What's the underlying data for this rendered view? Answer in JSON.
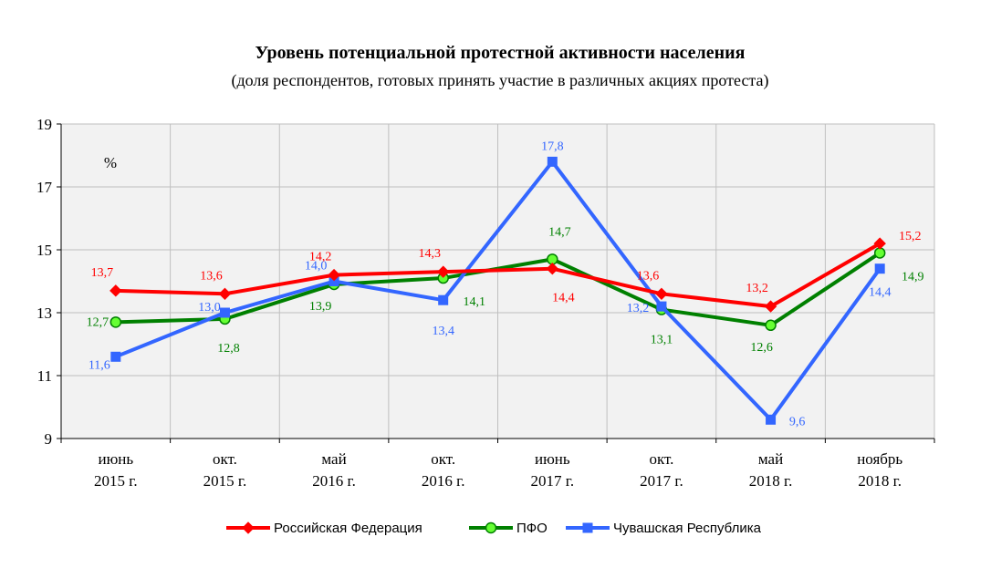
{
  "chart_data": {
    "type": "line",
    "title": "Уровень потенциальной протестной активности населения",
    "subtitle": "(доля респондентов, готовых принять участие в различных акциях протеста)",
    "unit_label": "%",
    "categories": [
      [
        "июнь",
        "2015 г."
      ],
      [
        "окт.",
        "2015 г."
      ],
      [
        "май",
        "2016 г."
      ],
      [
        "окт.",
        "2016 г."
      ],
      [
        "июнь",
        "2017 г."
      ],
      [
        "окт.",
        "2017 г."
      ],
      [
        "май",
        "2018 г."
      ],
      [
        "ноябрь",
        "2018 г."
      ]
    ],
    "ylim": [
      9,
      19
    ],
    "yticks": [
      9,
      11,
      13,
      15,
      17,
      19
    ],
    "grid": true,
    "legend_position": "bottom",
    "series": [
      {
        "name": "Российская Федерация",
        "color": "#ff0000",
        "marker": "diamond",
        "values": [
          13.7,
          13.6,
          14.2,
          14.3,
          14.4,
          13.6,
          13.2,
          15.2
        ],
        "labels": [
          "13,7",
          "13,6",
          "14,2",
          "14,3",
          "14,4",
          "13,6",
          "13,2",
          "15,2"
        ]
      },
      {
        "name": "ПФО",
        "color": "#008000",
        "marker": "circle",
        "values": [
          12.7,
          12.8,
          13.9,
          14.1,
          14.7,
          13.1,
          12.6,
          14.9
        ],
        "labels": [
          "12,7",
          "12,8",
          "13,9",
          "14,1",
          "14,7",
          "13,1",
          "12,6",
          "14,9"
        ]
      },
      {
        "name": "Чувашская Республика",
        "color": "#3366ff",
        "marker": "square",
        "values": [
          11.6,
          13.0,
          14.0,
          13.4,
          17.8,
          13.2,
          9.6,
          14.4
        ],
        "labels": [
          "11,6",
          "13,0",
          "14,0",
          "13,4",
          "17,8",
          "13,2",
          "9,6",
          "14,4"
        ]
      }
    ]
  }
}
